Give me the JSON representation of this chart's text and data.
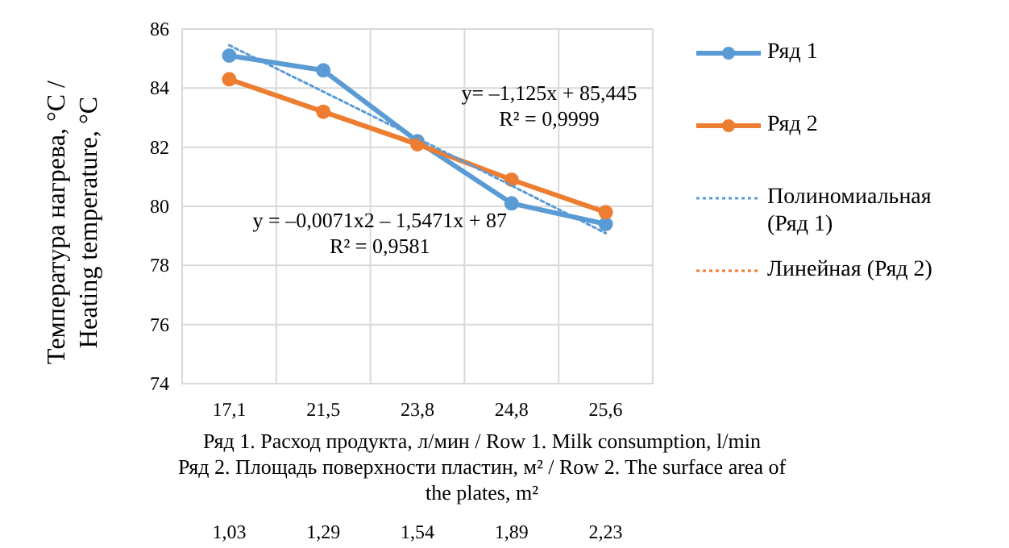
{
  "chart_data": {
    "type": "line",
    "ylabel": "Температура  нагрева, °C /\nHeating temperature, °C",
    "xlabel": "Ряд 1. Расход продукта, л/мин / Row 1. Milk consumption, l/min\nРяд 2. Площадь поверхности пластин, м² / Row 2. The surface area of\nthe plates, m²",
    "categories": [
      "17,1",
      "21,5",
      "23,8",
      "24,8",
      "25,6"
    ],
    "series": [
      {
        "name": "Ряд 1",
        "color": "#5b9bd5",
        "values": [
          85.1,
          84.6,
          82.2,
          80.1,
          79.4
        ],
        "marker": "circle",
        "line_style": "solid"
      },
      {
        "name": "Ряд 2",
        "color": "#ed7d31",
        "values": [
          84.3,
          83.2,
          82.1,
          80.9,
          79.8
        ],
        "marker": "circle",
        "line_style": "solid"
      },
      {
        "name": "Полиномиальная (Ряд 1)",
        "color": "#5b9bd5",
        "values": [
          85.45,
          83.88,
          82.3,
          80.7,
          79.09
        ],
        "marker": "none",
        "line_style": "dotted"
      },
      {
        "name": "Линейная (Ряд 2)",
        "color": "#ed7d31",
        "values": [
          null,
          null,
          null,
          null,
          null
        ],
        "marker": "none",
        "line_style": "dotted"
      }
    ],
    "ylim": [
      74,
      86
    ],
    "yticks": [
      74,
      76,
      78,
      80,
      82,
      84,
      86
    ],
    "grid": true,
    "legend": "right",
    "annotations": [
      "y= –1,125x + 85,445\nR² = 0,9999",
      "y = –0,0071x2 – 1,5471x + 87\nR² = 0,9581",
      "1,03",
      "1,29",
      "1,54",
      "1,89",
      "2,23"
    ]
  }
}
